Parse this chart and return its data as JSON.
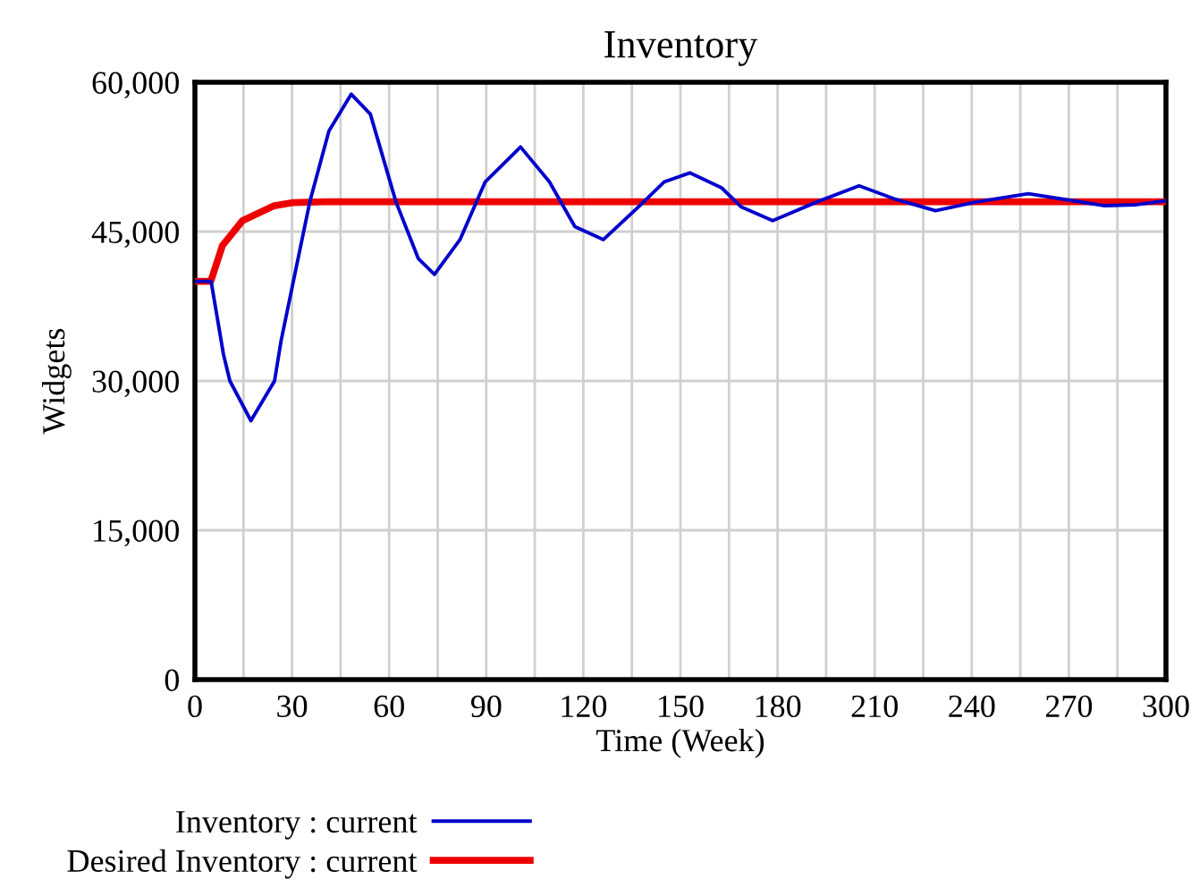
{
  "chart_data": {
    "type": "line",
    "title": "Inventory",
    "xlabel": "Time (Week)",
    "ylabel": "Widgets",
    "xlim": [
      0,
      300
    ],
    "xticks": [
      0,
      {
        "value": 15,
        "label": null
      },
      30,
      {
        "value": 45,
        "label": null
      },
      60,
      {
        "value": 75,
        "label": null
      },
      90,
      {
        "value": 105,
        "label": null
      },
      120,
      {
        "value": 135,
        "label": null
      },
      150,
      {
        "value": 165,
        "label": null
      },
      180,
      {
        "value": 195,
        "label": null
      },
      210,
      {
        "value": 225,
        "label": null
      },
      240,
      {
        "value": 255,
        "label": null
      },
      270,
      {
        "value": 285,
        "label": null
      },
      300
    ],
    "ylim": [
      0,
      60000
    ],
    "yticks": [
      {
        "value": 0,
        "label": "0"
      },
      {
        "value": 15000,
        "label": "15,000"
      },
      {
        "value": 30000,
        "label": "30,000"
      },
      {
        "value": 45000,
        "label": "45,000"
      },
      {
        "value": 60000,
        "label": "60,000"
      }
    ],
    "grid": true,
    "legend": "bottom",
    "marker": "none",
    "line_style": "solid",
    "series": [
      {
        "name": "Inventory : current",
        "color": "#0000cc",
        "x": [
          0,
          5,
          8.8,
          10.8,
          17.3,
          24.6,
          26.6,
          35.5,
          41.4,
          48.3,
          54.2,
          62.1,
          69,
          74,
          81.9,
          89.7,
          100.6,
          109.5,
          117.4,
          126.2,
          137.1,
          145,
          152.9,
          162.7,
          168.7,
          178.5,
          192.3,
          205.2,
          216,
          228.8,
          241.7,
          257.5,
          271.3,
          281.1,
          290.9,
          300
        ],
        "values": [
          40000,
          40000,
          32700,
          30000,
          26000,
          30000,
          34000,
          48000,
          55100,
          58800,
          56800,
          48000,
          42300,
          40700,
          44200,
          50000,
          53500,
          50000,
          45500,
          44200,
          47500,
          50000,
          50900,
          49400,
          47500,
          46100,
          48000,
          49600,
          48300,
          47100,
          48000,
          48800,
          48100,
          47600,
          47700,
          48100
        ]
      },
      {
        "name": "Desired Inventory : current",
        "color": "#ee0000",
        "x": [
          0,
          4.9,
          8.5,
          14.7,
          24.5,
          30,
          40,
          300
        ],
        "values": [
          40000,
          40000,
          43600,
          46100,
          47600,
          47900,
          48000,
          48000
        ]
      }
    ]
  }
}
